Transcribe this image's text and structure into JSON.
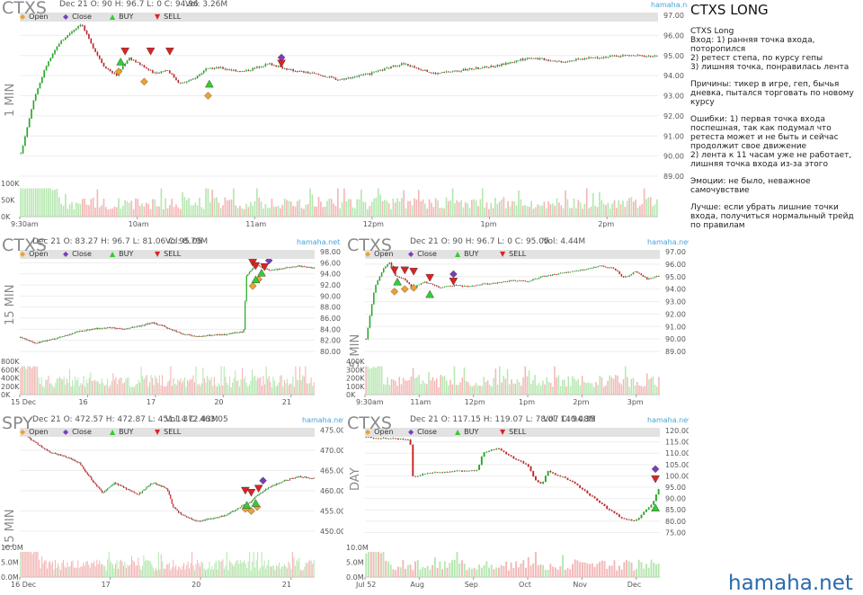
{
  "brand": "hamaha.net",
  "legend": {
    "open": "Open",
    "close": "Close",
    "buy": "BUY",
    "sell": "SELL"
  },
  "notes": {
    "title": "CTXS LONG",
    "paragraphs": [
      "CTXS Long\nВход: 1) ранняя точка входа, поторопился\n2) ретест степа, по курсу гепы\n3) лишняя точка, понравилась лента",
      "Причины: тикер в игре, геп, бычья дневка, пытался торговать по новому курсу",
      "Ошибки: 1) первая точка входа поспешная, так как подумал что ретеста может и не быть и сейчас продолжит свое движение\n2) лента к 11 часам уже не работает, лишняя точка входа из-за этого",
      "Эмоции: не было, неважное самочувствие",
      "Лучше: если убрать лишние точки входа, получиться нормальный трейд по правилам"
    ]
  },
  "footer": "hamaha.net",
  "colors": {
    "up": "#22aa22",
    "down": "#cc2222",
    "volume_up": "#b6e7b0",
    "volume_down": "#f3b7b7",
    "open_marker": "#f0a030",
    "close_marker": "#7a3fb5",
    "buy_marker": "#33cc33",
    "sell_marker": "#dd2222"
  },
  "chart_data": [
    {
      "type": "candlestick",
      "ticker": "CTXS",
      "timeframe": "1 MIN",
      "ohlc_text": "Dec 21 O: 90 H: 96.7 L: 0 C: 94.96",
      "volume_text": "Vol: 3.26M",
      "ylim": [
        89,
        97
      ],
      "yticks": [
        "97.00",
        "96.00",
        "95.00",
        "94.00",
        "93.00",
        "92.00",
        "91.00",
        "90.00",
        "89.00"
      ],
      "xticks": [
        "9:30am",
        "10am",
        "11am",
        "12pm",
        "1pm",
        "2pm"
      ],
      "volume_ticks": [
        "100K",
        "50K",
        "0K"
      ],
      "volume_max": 120,
      "path": [
        [
          0,
          90.1
        ],
        [
          0.02,
          92.8
        ],
        [
          0.04,
          94.5
        ],
        [
          0.06,
          95.6
        ],
        [
          0.08,
          96.2
        ],
        [
          0.095,
          96.6
        ],
        [
          0.11,
          95.6
        ],
        [
          0.13,
          94.5
        ],
        [
          0.15,
          94.0
        ],
        [
          0.17,
          94.9
        ],
        [
          0.19,
          94.5
        ],
        [
          0.21,
          94.1
        ],
        [
          0.23,
          94.3
        ],
        [
          0.25,
          93.6
        ],
        [
          0.27,
          93.8
        ],
        [
          0.29,
          94.3
        ],
        [
          0.31,
          94.4
        ],
        [
          0.35,
          94.2
        ],
        [
          0.39,
          94.6
        ],
        [
          0.42,
          94.3
        ],
        [
          0.46,
          94.1
        ],
        [
          0.5,
          93.8
        ],
        [
          0.55,
          94.1
        ],
        [
          0.6,
          94.6
        ],
        [
          0.65,
          94.1
        ],
        [
          0.7,
          94.3
        ],
        [
          0.75,
          94.5
        ],
        [
          0.8,
          94.9
        ],
        [
          0.85,
          94.7
        ],
        [
          0.9,
          94.9
        ],
        [
          0.95,
          95.0
        ],
        [
          1,
          94.96
        ]
      ],
      "markers": [
        {
          "kind": "open",
          "t": 0.155,
          "v": 94.2
        },
        {
          "kind": "open",
          "t": 0.195,
          "v": 93.7
        },
        {
          "kind": "open",
          "t": 0.295,
          "v": 93.0
        },
        {
          "kind": "buy",
          "t": 0.158,
          "v": 94.7
        },
        {
          "kind": "buy",
          "t": 0.297,
          "v": 93.6
        },
        {
          "kind": "sell",
          "t": 0.165,
          "v": 95.2
        },
        {
          "kind": "sell",
          "t": 0.205,
          "v": 95.2
        },
        {
          "kind": "sell",
          "t": 0.235,
          "v": 95.2
        },
        {
          "kind": "sell",
          "t": 0.41,
          "v": 94.6
        },
        {
          "kind": "close",
          "t": 0.41,
          "v": 94.9
        }
      ]
    },
    {
      "type": "candlestick",
      "ticker": "CTXS",
      "timeframe": "15 MIN",
      "ohlc_text": "Dec 21 O: 83.27 H: 96.7 L: 81.06 C: 95.05",
      "volume_text": "Vol: 8.79M",
      "ylim": [
        80,
        98
      ],
      "yticks": [
        "98.00",
        "96.00",
        "94.00",
        "92.00",
        "90.00",
        "88.00",
        "86.00",
        "84.00",
        "82.00",
        "80.00"
      ],
      "xticks": [
        "15 Dec",
        "16",
        "17",
        "20",
        "21"
      ],
      "volume_ticks": [
        "800K",
        "600K",
        "400K",
        "200K",
        "0K"
      ],
      "volume_max": 900,
      "path": [
        [
          0,
          82.6
        ],
        [
          0.05,
          81.5
        ],
        [
          0.1,
          82.1
        ],
        [
          0.15,
          82.8
        ],
        [
          0.2,
          83.6
        ],
        [
          0.25,
          84.1
        ],
        [
          0.3,
          84.3
        ],
        [
          0.35,
          84.0
        ],
        [
          0.4,
          84.5
        ],
        [
          0.45,
          85.2
        ],
        [
          0.5,
          84.3
        ],
        [
          0.55,
          83.2
        ],
        [
          0.6,
          82.7
        ],
        [
          0.65,
          82.9
        ],
        [
          0.7,
          83.1
        ],
        [
          0.75,
          83.5
        ],
        [
          0.76,
          83.3
        ],
        [
          0.77,
          93.6
        ],
        [
          0.8,
          95.6
        ],
        [
          0.85,
          94.6
        ],
        [
          0.9,
          95.0
        ],
        [
          0.95,
          95.4
        ],
        [
          1,
          95.05
        ]
      ],
      "markers": [
        {
          "kind": "open",
          "t": 0.79,
          "v": 91.8
        },
        {
          "kind": "open",
          "t": 0.81,
          "v": 93.0
        },
        {
          "kind": "buy",
          "t": 0.8,
          "v": 93.0
        },
        {
          "kind": "buy",
          "t": 0.82,
          "v": 94.2
        },
        {
          "kind": "sell",
          "t": 0.79,
          "v": 96.0
        },
        {
          "kind": "sell",
          "t": 0.8,
          "v": 95.4
        },
        {
          "kind": "sell",
          "t": 0.83,
          "v": 95.2
        },
        {
          "kind": "close",
          "t": 0.845,
          "v": 96.4
        }
      ]
    },
    {
      "type": "candlestick",
      "ticker": "CTXS",
      "timeframe": "5 MIN",
      "ohlc_text": "Dec 21 O: 90 H: 96.7 L: 0 C: 95.05",
      "volume_text": "Vol: 4.44M",
      "ylim": [
        89,
        97
      ],
      "yticks": [
        "97.00",
        "96.00",
        "95.00",
        "94.00",
        "93.00",
        "92.00",
        "91.00",
        "90.00",
        "89.00"
      ],
      "xticks": [
        "9:30am",
        "11am",
        "12pm",
        "1pm",
        "2pm",
        "3pm"
      ],
      "volume_ticks": [
        "400K",
        "300K",
        "200K",
        "100K",
        "0K"
      ],
      "volume_max": 450,
      "path": [
        [
          0,
          90.0
        ],
        [
          0.03,
          94.2
        ],
        [
          0.06,
          95.6
        ],
        [
          0.08,
          96.2
        ],
        [
          0.1,
          95.1
        ],
        [
          0.13,
          94.8
        ],
        [
          0.16,
          94.1
        ],
        [
          0.2,
          94.6
        ],
        [
          0.25,
          94.1
        ],
        [
          0.3,
          94.3
        ],
        [
          0.35,
          94.2
        ],
        [
          0.4,
          94.4
        ],
        [
          0.45,
          94.5
        ],
        [
          0.5,
          94.7
        ],
        [
          0.55,
          94.6
        ],
        [
          0.6,
          95.0
        ],
        [
          0.65,
          95.2
        ],
        [
          0.7,
          95.4
        ],
        [
          0.75,
          95.6
        ],
        [
          0.8,
          95.9
        ],
        [
          0.85,
          95.6
        ],
        [
          0.88,
          94.9
        ],
        [
          0.92,
          95.4
        ],
        [
          0.96,
          94.8
        ],
        [
          1,
          95.05
        ]
      ],
      "markers": [
        {
          "kind": "open",
          "t": 0.1,
          "v": 93.8
        },
        {
          "kind": "open",
          "t": 0.135,
          "v": 94.0
        },
        {
          "kind": "open",
          "t": 0.165,
          "v": 94.1
        },
        {
          "kind": "buy",
          "t": 0.11,
          "v": 94.6
        },
        {
          "kind": "buy",
          "t": 0.22,
          "v": 93.6
        },
        {
          "kind": "sell",
          "t": 0.1,
          "v": 95.5
        },
        {
          "kind": "sell",
          "t": 0.135,
          "v": 95.5
        },
        {
          "kind": "sell",
          "t": 0.165,
          "v": 95.4
        },
        {
          "kind": "sell",
          "t": 0.22,
          "v": 94.9
        },
        {
          "kind": "sell",
          "t": 0.3,
          "v": 94.6
        },
        {
          "kind": "close",
          "t": 0.3,
          "v": 95.2
        }
      ]
    },
    {
      "type": "candlestick",
      "ticker": "SPY",
      "timeframe": "15 MIN",
      "ohlc_text": "Dec 21 O: 472.57 H: 472.87 L: 451.14 C: 463.05",
      "volume_text": "Vol: 372.43M",
      "ylim": [
        448,
        476
      ],
      "yticks": [
        "475.00",
        "470.00",
        "465.00",
        "460.00",
        "455.00",
        "450.00"
      ],
      "xticks": [
        "16 Dec",
        "17",
        "20",
        "21"
      ],
      "volume_ticks": [
        "10.0M",
        "5.0M",
        "0.0M"
      ],
      "volume_max": 12,
      "path": [
        [
          0,
          474.5
        ],
        [
          0.05,
          472.0
        ],
        [
          0.1,
          469.5
        ],
        [
          0.15,
          468.5
        ],
        [
          0.2,
          467.0
        ],
        [
          0.25,
          462.0
        ],
        [
          0.28,
          459.5
        ],
        [
          0.32,
          462.0
        ],
        [
          0.36,
          460.5
        ],
        [
          0.4,
          459.0
        ],
        [
          0.45,
          462.0
        ],
        [
          0.5,
          460.5
        ],
        [
          0.52,
          456.0
        ],
        [
          0.55,
          454.0
        ],
        [
          0.6,
          452.5
        ],
        [
          0.65,
          453.0
        ],
        [
          0.7,
          454.0
        ],
        [
          0.75,
          456.0
        ],
        [
          0.78,
          457.0
        ],
        [
          0.8,
          458.5
        ],
        [
          0.85,
          461.0
        ],
        [
          0.9,
          462.5
        ],
        [
          0.95,
          463.5
        ],
        [
          1,
          463.05
        ]
      ],
      "markers": [
        {
          "kind": "open",
          "t": 0.765,
          "v": 455.5
        },
        {
          "kind": "open",
          "t": 0.785,
          "v": 455.0
        },
        {
          "kind": "open",
          "t": 0.805,
          "v": 456.0
        },
        {
          "kind": "buy",
          "t": 0.77,
          "v": 456.5
        },
        {
          "kind": "buy",
          "t": 0.8,
          "v": 457.0
        },
        {
          "kind": "sell",
          "t": 0.765,
          "v": 460.0
        },
        {
          "kind": "sell",
          "t": 0.785,
          "v": 459.5
        },
        {
          "kind": "sell",
          "t": 0.81,
          "v": 460.5
        },
        {
          "kind": "close",
          "t": 0.825,
          "v": 462.5
        }
      ]
    },
    {
      "type": "candlestick",
      "ticker": "CTXS",
      "timeframe": "DAY",
      "ohlc_text": "Dec 21 O: 117.15 H: 119.07 L: 78.07 C: 94.35",
      "volume_text": "Vol: 140.08M",
      "ylim": [
        72,
        122
      ],
      "yticks": [
        "120.00",
        "115.00",
        "110.00",
        "105.00",
        "100.00",
        "95.00",
        "90.00",
        "85.00",
        "80.00",
        "75.00"
      ],
      "xticks": [
        "Jul 52",
        "Aug",
        "Sep",
        "Oct",
        "Nov",
        "Dec"
      ],
      "volume_ticks": [
        "10.0M",
        "5.0M",
        "0.0M"
      ],
      "volume_max": 12,
      "path": [
        [
          0,
          117
        ],
        [
          0.08,
          116.5
        ],
        [
          0.15,
          116
        ],
        [
          0.16,
          99.0
        ],
        [
          0.2,
          101
        ],
        [
          0.3,
          102
        ],
        [
          0.38,
          102.5
        ],
        [
          0.4,
          110.5
        ],
        [
          0.45,
          112
        ],
        [
          0.5,
          108
        ],
        [
          0.55,
          105
        ],
        [
          0.58,
          98
        ],
        [
          0.6,
          96
        ],
        [
          0.62,
          102
        ],
        [
          0.66,
          100
        ],
        [
          0.7,
          98
        ],
        [
          0.74,
          94
        ],
        [
          0.78,
          90
        ],
        [
          0.83,
          85
        ],
        [
          0.88,
          81
        ],
        [
          0.92,
          80
        ],
        [
          0.95,
          84
        ],
        [
          0.98,
          88
        ],
        [
          1,
          94.35
        ]
      ],
      "markers": [
        {
          "kind": "buy",
          "t": 0.985,
          "v": 86.0
        },
        {
          "kind": "sell",
          "t": 0.985,
          "v": 98.5
        },
        {
          "kind": "close",
          "t": 0.985,
          "v": 103.0
        }
      ]
    }
  ]
}
